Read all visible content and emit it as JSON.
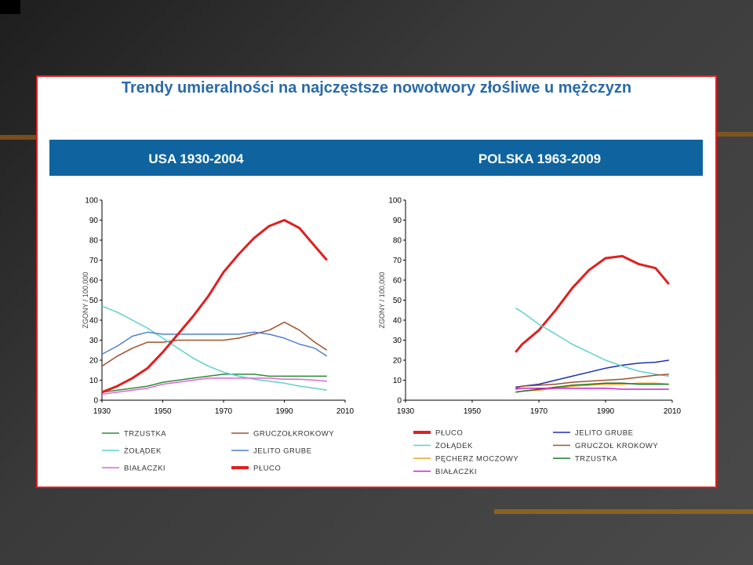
{
  "header": {
    "title": "Trendy umieralności na najczęstsze nowotwory złośliwe u mężczyzn"
  },
  "chart_data": [
    {
      "type": "line",
      "title": "USA 1930-2004",
      "ylabel": "ZGONY / 100,000",
      "x": [
        1930,
        1935,
        1940,
        1945,
        1950,
        1955,
        1960,
        1965,
        1970,
        1975,
        1980,
        1985,
        1990,
        1995,
        2000,
        2004
      ],
      "xlim": [
        1930,
        2010
      ],
      "xticks": [
        1930,
        1950,
        1970,
        1990,
        2010
      ],
      "ylim": [
        0,
        100
      ],
      "yticks": [
        0,
        10,
        20,
        30,
        40,
        50,
        60,
        70,
        80,
        90,
        100
      ],
      "series": [
        {
          "name": "TRZUSTKA",
          "color": "#2e8b3a",
          "values": [
            4,
            5,
            6,
            7,
            9,
            10,
            11,
            12,
            13,
            13,
            13,
            12,
            12,
            12,
            12,
            12
          ]
        },
        {
          "name": "GRUCZOŁKROKOWY",
          "color": "#a0522d",
          "values": [
            17,
            22,
            26,
            29,
            29,
            30,
            30,
            30,
            30,
            31,
            33,
            35,
            39,
            35,
            29,
            25
          ]
        },
        {
          "name": "ŻOŁĄDEK",
          "color": "#5fd0d0",
          "values": [
            47,
            44,
            40,
            36,
            31,
            26,
            21,
            17,
            14,
            12,
            10.5,
            9.5,
            8.5,
            7,
            6,
            5
          ]
        },
        {
          "name": "JELITO GRUBE",
          "color": "#4f81d0",
          "values": [
            23,
            27,
            32,
            34,
            33,
            33,
            33,
            33,
            33,
            33,
            34,
            33,
            31,
            28,
            26,
            22
          ]
        },
        {
          "name": "BIAŁACZKI",
          "color": "#e066d0",
          "values": [
            3,
            4,
            5,
            6,
            8,
            9,
            10,
            11,
            11,
            11,
            11,
            11,
            10.5,
            10.5,
            10,
            9.5
          ]
        },
        {
          "name": "PŁUCO",
          "color": "#e02020",
          "values": [
            4,
            7,
            11,
            16,
            24,
            33,
            42,
            52,
            64,
            73,
            81,
            87,
            90,
            86,
            77,
            70
          ]
        }
      ]
    },
    {
      "type": "line",
      "title": "POLSKA 1963-2009",
      "ylabel": "ZGONY / 100,000",
      "x": [
        1963,
        1965,
        1970,
        1975,
        1980,
        1985,
        1990,
        1995,
        2000,
        2005,
        2009
      ],
      "xlim": [
        1930,
        2010
      ],
      "xticks": [
        1930,
        1950,
        1970,
        1990,
        2010
      ],
      "ylim": [
        0,
        100
      ],
      "yticks": [
        0,
        10,
        20,
        30,
        40,
        50,
        60,
        70,
        80,
        90,
        100
      ],
      "series": [
        {
          "name": "PŁUCO",
          "color": "#e02020",
          "values": [
            24,
            28,
            35,
            45,
            56,
            65,
            71,
            72,
            68,
            66,
            58
          ]
        },
        {
          "name": "JELITO GRUBE",
          "color": "#1f2fb0",
          "values": [
            6.5,
            7,
            8,
            10,
            12,
            14,
            16,
            17.5,
            18.5,
            19,
            20
          ]
        },
        {
          "name": "ŻOŁĄDEK",
          "color": "#5fd0d0",
          "values": [
            46,
            44,
            38,
            33,
            28,
            24,
            20,
            17,
            14.5,
            13,
            12
          ]
        },
        {
          "name": "GRUCZOŁ KROKOWY",
          "color": "#a0522d",
          "values": [
            6,
            7,
            7.5,
            8,
            9,
            9.5,
            10,
            10.5,
            11.5,
            12.5,
            13
          ]
        },
        {
          "name": "PĘCHERZ MOCZOWY",
          "color": "#f0a020",
          "values": [
            4,
            4.5,
            5,
            6,
            7,
            7.5,
            8,
            8,
            8.5,
            8.5,
            8
          ]
        },
        {
          "name": "TRZUSTKA",
          "color": "#1a7a2a",
          "values": [
            4,
            4.5,
            5.5,
            6.5,
            7.5,
            8,
            8.5,
            8.5,
            8,
            8,
            8
          ]
        },
        {
          "name": "BIAŁACZKI",
          "color": "#d020d0",
          "values": [
            5.5,
            6,
            6,
            6,
            6,
            6,
            6,
            5.5,
            5.5,
            5.5,
            5.5
          ]
        }
      ]
    }
  ]
}
